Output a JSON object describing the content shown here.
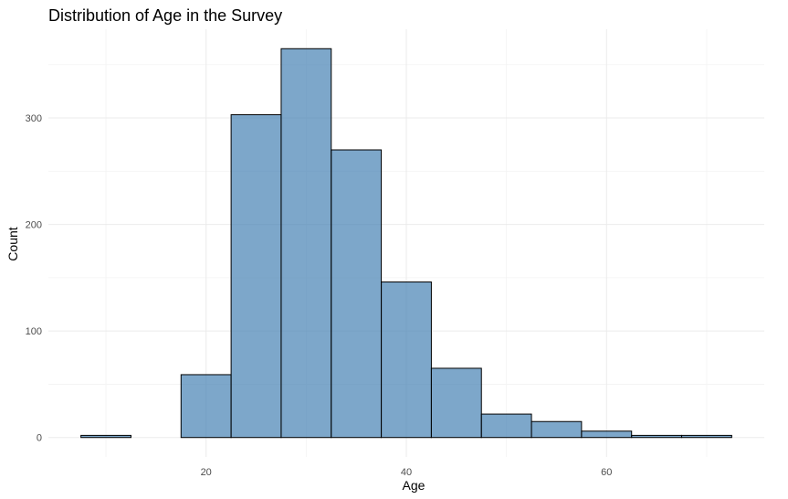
{
  "chart_data": {
    "type": "bar",
    "title": "Distribution of Age in the Survey",
    "xlabel": "Age",
    "ylabel": "Count",
    "bin_width": 5,
    "bins": [
      {
        "x0": 7.5,
        "x1": 12.5,
        "count": 2
      },
      {
        "x0": 12.5,
        "x1": 17.5,
        "count": 0
      },
      {
        "x0": 17.5,
        "x1": 22.5,
        "count": 59
      },
      {
        "x0": 22.5,
        "x1": 27.5,
        "count": 303
      },
      {
        "x0": 27.5,
        "x1": 32.5,
        "count": 365
      },
      {
        "x0": 32.5,
        "x1": 37.5,
        "count": 270
      },
      {
        "x0": 37.5,
        "x1": 42.5,
        "count": 146
      },
      {
        "x0": 42.5,
        "x1": 47.5,
        "count": 65
      },
      {
        "x0": 47.5,
        "x1": 52.5,
        "count": 22
      },
      {
        "x0": 52.5,
        "x1": 57.5,
        "count": 15
      },
      {
        "x0": 57.5,
        "x1": 62.5,
        "count": 6
      },
      {
        "x0": 62.5,
        "x1": 67.5,
        "count": 2
      },
      {
        "x0": 67.5,
        "x1": 72.5,
        "count": 2
      }
    ],
    "xlim": [
      4.25,
      75.75
    ],
    "ylim": [
      -18.25,
      383.25
    ],
    "x_ticks": [
      20,
      40,
      60
    ],
    "x_minor_ticks": [
      10,
      30,
      50,
      70
    ],
    "y_ticks": [
      0,
      100,
      200,
      300
    ],
    "y_minor_ticks": [
      50,
      150,
      250,
      350
    ],
    "fill_color": "#4682b4",
    "fill_opacity": 0.7,
    "outline_color": "#000000",
    "grid": true,
    "legend": "none"
  }
}
